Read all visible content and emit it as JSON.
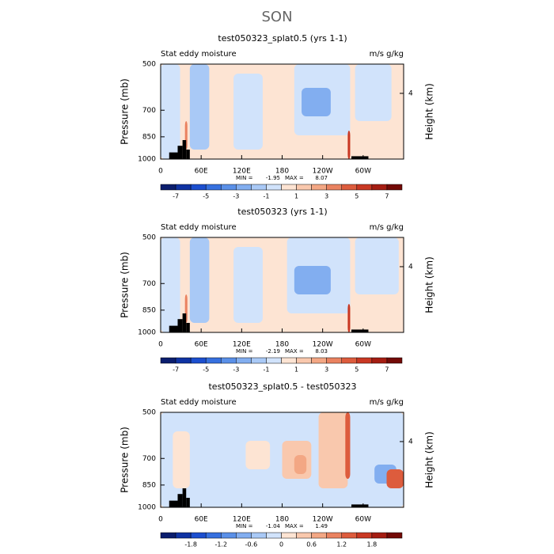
{
  "title": "SON",
  "chart_data": [
    {
      "type": "contour",
      "title": "test050323_splat0.5 (yrs 1-1)",
      "left_label": "Stat eddy moisture",
      "right_label": "m/s g/kg",
      "y_label": "Pressure (mb)",
      "y2_label": "Height (km)",
      "xlim": [
        0,
        360
      ],
      "xticks": [
        0,
        {
          "value": 60,
          "label": "60E"
        },
        {
          "value": 120,
          "label": "120E"
        },
        180,
        {
          "value": 240,
          "label": "120W"
        },
        {
          "value": 300,
          "label": "60W"
        }
      ],
      "ylim": [
        1000,
        500
      ],
      "yticks": [
        1000,
        850,
        700,
        500
      ],
      "log_y": true,
      "y2lim": [
        0,
        5.78
      ],
      "y2ticks": [
        4
      ],
      "min_label": "MIN =",
      "min": -1.95,
      "max_label": "MAX =",
      "max": 8.07,
      "colorbar": {
        "levels": [
          -8,
          -7,
          -6,
          -5,
          -4,
          -3,
          -2,
          -1,
          0,
          1,
          2,
          3,
          4,
          5,
          6,
          7,
          8
        ],
        "ticks": [
          -7,
          -5,
          -3,
          -1,
          1,
          3,
          5,
          7
        ],
        "colors": [
          "#0b1e6e",
          "#0f33a3",
          "#1c4fcf",
          "#3670df",
          "#5a90e8",
          "#82aef0",
          "#a9c9f6",
          "#d1e3fb",
          "#fde4d3",
          "#f9c8ad",
          "#f3a784",
          "#ea8260",
          "#dd5c3d",
          "#c93823",
          "#a51d12",
          "#730a06"
        ]
      }
    },
    {
      "type": "contour",
      "title": "test050323 (yrs 1-1)",
      "left_label": "Stat eddy moisture",
      "right_label": "m/s g/kg",
      "y_label": "Pressure (mb)",
      "y2_label": "Height (km)",
      "xlim": [
        0,
        360
      ],
      "xticks": [
        0,
        {
          "value": 60,
          "label": "60E"
        },
        {
          "value": 120,
          "label": "120E"
        },
        180,
        {
          "value": 240,
          "label": "120W"
        },
        {
          "value": 300,
          "label": "60W"
        }
      ],
      "ylim": [
        1000,
        500
      ],
      "yticks": [
        1000,
        850,
        700,
        500
      ],
      "log_y": true,
      "y2lim": [
        0,
        5.78
      ],
      "y2ticks": [
        4
      ],
      "min_label": "MIN =",
      "min": -2.19,
      "max_label": "MAX =",
      "max": 8.03,
      "colorbar": {
        "levels": [
          -8,
          -7,
          -6,
          -5,
          -4,
          -3,
          -2,
          -1,
          0,
          1,
          2,
          3,
          4,
          5,
          6,
          7,
          8
        ],
        "ticks": [
          -7,
          -5,
          -3,
          -1,
          1,
          3,
          5,
          7
        ],
        "colors": [
          "#0b1e6e",
          "#0f33a3",
          "#1c4fcf",
          "#3670df",
          "#5a90e8",
          "#82aef0",
          "#a9c9f6",
          "#d1e3fb",
          "#fde4d3",
          "#f9c8ad",
          "#f3a784",
          "#ea8260",
          "#dd5c3d",
          "#c93823",
          "#a51d12",
          "#730a06"
        ]
      }
    },
    {
      "type": "contour",
      "title": "test050323_splat0.5 - test050323",
      "left_label": "Stat eddy moisture",
      "right_label": "m/s g/kg",
      "y_label": "Pressure (mb)",
      "y2_label": "Height (km)",
      "xlim": [
        0,
        360
      ],
      "xticks": [
        0,
        {
          "value": 60,
          "label": "60E"
        },
        {
          "value": 120,
          "label": "120E"
        },
        180,
        {
          "value": 240,
          "label": "120W"
        },
        {
          "value": 300,
          "label": "60W"
        }
      ],
      "ylim": [
        1000,
        500
      ],
      "yticks": [
        1000,
        850,
        700,
        500
      ],
      "log_y": true,
      "y2lim": [
        0,
        5.78
      ],
      "y2ticks": [
        4
      ],
      "min_label": "MIN =",
      "min": -1.04,
      "max_label": "MAX =",
      "max": 1.49,
      "colorbar": {
        "levels": [
          -2.4,
          -2.1,
          -1.8,
          -1.5,
          -1.2,
          -0.9,
          -0.6,
          -0.3,
          0,
          0.3,
          0.6,
          0.9,
          1.2,
          1.5,
          1.8,
          2.1,
          2.4
        ],
        "ticks": [
          -1.8,
          -1.2,
          -0.6,
          0,
          0.6,
          1.2,
          1.8
        ],
        "colors": [
          "#0b1e6e",
          "#0f33a3",
          "#1c4fcf",
          "#3670df",
          "#5a90e8",
          "#82aef0",
          "#a9c9f6",
          "#d1e3fb",
          "#fde4d3",
          "#f9c8ad",
          "#f3a784",
          "#ea8260",
          "#dd5c3d",
          "#c93823",
          "#a51d12",
          "#730a06"
        ]
      }
    }
  ]
}
